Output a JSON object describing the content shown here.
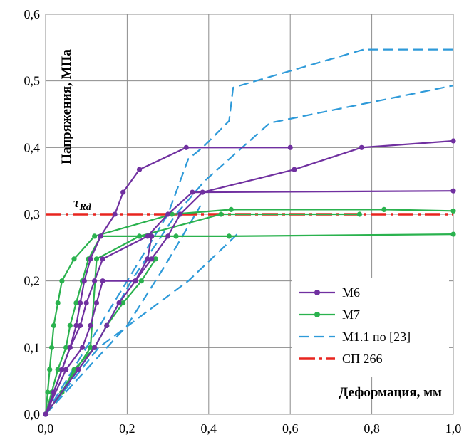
{
  "chart_data": {
    "type": "line",
    "xlabel": "Деформация, мм",
    "ylabel": "Напряжения, МПа",
    "xlim": [
      0,
      1.0
    ],
    "ylim": [
      0,
      0.6
    ],
    "x_ticks": [
      "0,0",
      "0,2",
      "0,4",
      "0,6",
      "0,8",
      "1,0"
    ],
    "y_ticks": [
      "0,0",
      "0,1",
      "0,2",
      "0,3",
      "0,4",
      "0,5",
      "0,6"
    ],
    "grid": true,
    "legend_position": "bottom-right",
    "annotation": {
      "base": "τ",
      "sub": "Rd",
      "x": 0.1,
      "y": 0.3
    },
    "series": [
      {
        "name": "М6",
        "color": "#7030a0",
        "style": "solid-marker",
        "lines": [
          [
            [
              0,
              0
            ],
            [
              0.02,
              0.033
            ],
            [
              0.04,
              0.067
            ],
            [
              0.06,
              0.1
            ],
            [
              0.075,
              0.133
            ],
            [
              0.085,
              0.167
            ],
            [
              0.095,
              0.2
            ],
            [
              0.11,
              0.233
            ],
            [
              0.135,
              0.267
            ],
            [
              0.17,
              0.3
            ],
            [
              0.19,
              0.333
            ],
            [
              0.23,
              0.367
            ],
            [
              0.345,
              0.4
            ],
            [
              0.6,
              0.4
            ]
          ],
          [
            [
              0,
              0
            ],
            [
              0.04,
              0.067
            ],
            [
              0.06,
              0.1
            ],
            [
              0.085,
              0.133
            ],
            [
              0.1,
              0.167
            ],
            [
              0.12,
              0.2
            ],
            [
              0.14,
              0.233
            ],
            [
              0.25,
              0.267
            ],
            [
              0.3,
              0.3
            ],
            [
              0.36,
              0.333
            ],
            [
              1.0,
              0.335
            ]
          ],
          [
            [
              0,
              0
            ],
            [
              0.05,
              0.067
            ],
            [
              0.09,
              0.1
            ],
            [
              0.11,
              0.133
            ],
            [
              0.125,
              0.167
            ],
            [
              0.14,
              0.2
            ],
            [
              0.22,
              0.2
            ],
            [
              0.26,
              0.233
            ],
            [
              0.3,
              0.267
            ],
            [
              0.33,
              0.3
            ],
            [
              0.385,
              0.333
            ],
            [
              0.61,
              0.367
            ],
            [
              0.775,
              0.4
            ],
            [
              1.0,
              0.41
            ]
          ],
          [
            [
              0,
              0
            ],
            [
              0.08,
              0.067
            ],
            [
              0.12,
              0.1
            ],
            [
              0.15,
              0.133
            ],
            [
              0.18,
              0.167
            ],
            [
              0.22,
              0.2
            ],
            [
              0.25,
              0.233
            ],
            [
              0.26,
              0.267
            ]
          ]
        ]
      },
      {
        "name": "М7",
        "color": "#2ab24e",
        "style": "solid-marker",
        "lines": [
          [
            [
              0,
              0
            ],
            [
              0.005,
              0.033
            ],
            [
              0.01,
              0.067
            ],
            [
              0.015,
              0.1
            ],
            [
              0.02,
              0.133
            ],
            [
              0.03,
              0.167
            ],
            [
              0.04,
              0.2
            ],
            [
              0.07,
              0.233
            ],
            [
              0.12,
              0.267
            ],
            [
              0.31,
              0.3
            ],
            [
              0.455,
              0.307
            ],
            [
              0.83,
              0.307
            ],
            [
              1.0,
              0.305
            ]
          ],
          [
            [
              0,
              0
            ],
            [
              0.015,
              0.033
            ],
            [
              0.03,
              0.067
            ],
            [
              0.05,
              0.1
            ],
            [
              0.06,
              0.133
            ],
            [
              0.075,
              0.167
            ],
            [
              0.09,
              0.2
            ],
            [
              0.105,
              0.233
            ],
            [
              0.135,
              0.267
            ],
            [
              0.26,
              0.267
            ],
            [
              0.32,
              0.267
            ],
            [
              0.45,
              0.267
            ],
            [
              1.0,
              0.27
            ]
          ],
          [
            [
              0,
              0
            ],
            [
              0.04,
              0.033
            ],
            [
              0.075,
              0.067
            ],
            [
              0.11,
              0.1
            ],
            [
              0.125,
              0.233
            ],
            [
              0.23,
              0.267
            ],
            [
              0.43,
              0.3
            ],
            [
              0.77,
              0.3
            ]
          ],
          [
            [
              0,
              0
            ],
            [
              0.04,
              0.033
            ],
            [
              0.07,
              0.067
            ],
            [
              0.12,
              0.1
            ],
            [
              0.15,
              0.133
            ],
            [
              0.19,
              0.167
            ],
            [
              0.235,
              0.2
            ],
            [
              0.27,
              0.233
            ]
          ]
        ]
      },
      {
        "name": "М1.1 по [23]",
        "color": "#2e9ad9",
        "style": "dashed",
        "lines": [
          [
            [
              0,
              0
            ],
            [
              0.1,
              0.1
            ],
            [
              0.2,
              0.2
            ],
            [
              0.3,
              0.3
            ],
            [
              0.35,
              0.383
            ],
            [
              0.385,
              0.4
            ],
            [
              0.45,
              0.44
            ],
            [
              0.46,
              0.49
            ],
            [
              0.78,
              0.547
            ],
            [
              1.0,
              0.547
            ]
          ],
          [
            [
              0,
              0
            ],
            [
              0.12,
              0.1
            ],
            [
              0.21,
              0.2
            ],
            [
              0.32,
              0.3
            ],
            [
              0.39,
              0.35
            ],
            [
              0.55,
              0.437
            ],
            [
              1.0,
              0.493
            ]
          ],
          [
            [
              0,
              0
            ],
            [
              0.1,
              0.067
            ],
            [
              0.2,
              0.133
            ],
            [
              0.29,
              0.22
            ],
            [
              0.38,
              0.313
            ]
          ],
          [
            [
              0,
              0
            ],
            [
              0.13,
              0.1
            ],
            [
              0.35,
              0.2
            ],
            [
              0.47,
              0.27
            ]
          ]
        ]
      },
      {
        "name": "СП 266",
        "color": "#e8251f",
        "style": "dash-dot",
        "lines": [
          [
            [
              0,
              0.3
            ],
            [
              1.0,
              0.3
            ]
          ]
        ]
      }
    ]
  }
}
